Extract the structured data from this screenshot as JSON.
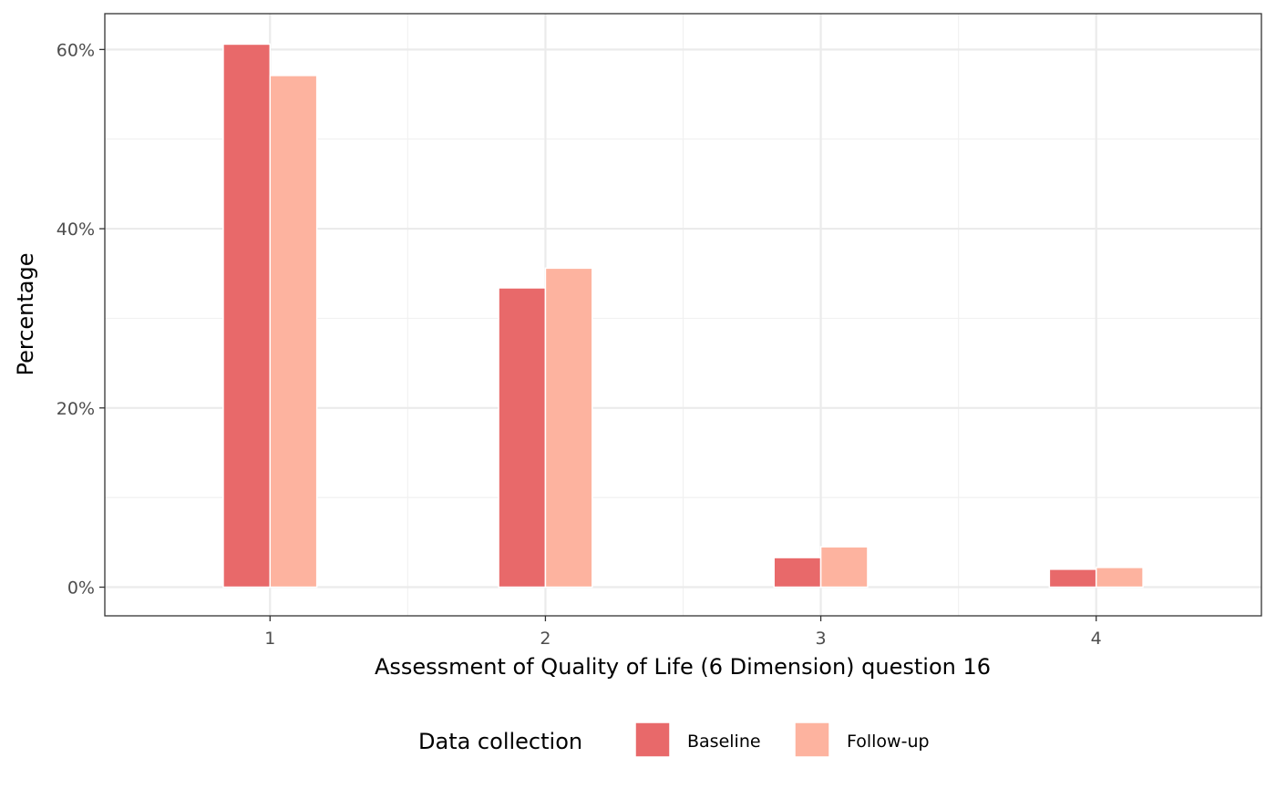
{
  "chart_data": {
    "type": "bar",
    "title": "",
    "xlabel": "Assessment of Quality of Life (6 Dimension) question 16",
    "ylabel": "Percentage",
    "categories": [
      "1",
      "2",
      "3",
      "4"
    ],
    "ylim": [
      -3.2,
      64
    ],
    "y_ticks": [
      0,
      20,
      40,
      60
    ],
    "y_tick_labels": [
      "0%",
      "20%",
      "40%",
      "60%"
    ],
    "grid": true,
    "legend": {
      "title": "Data collection",
      "position": "bottom"
    },
    "series": [
      {
        "name": "Baseline",
        "color": "#E8696A",
        "values": [
          60.6,
          33.4,
          3.3,
          2.0
        ]
      },
      {
        "name": "Follow-up",
        "color": "#FDB39F",
        "values": [
          57.1,
          35.6,
          4.5,
          2.2
        ]
      }
    ]
  }
}
